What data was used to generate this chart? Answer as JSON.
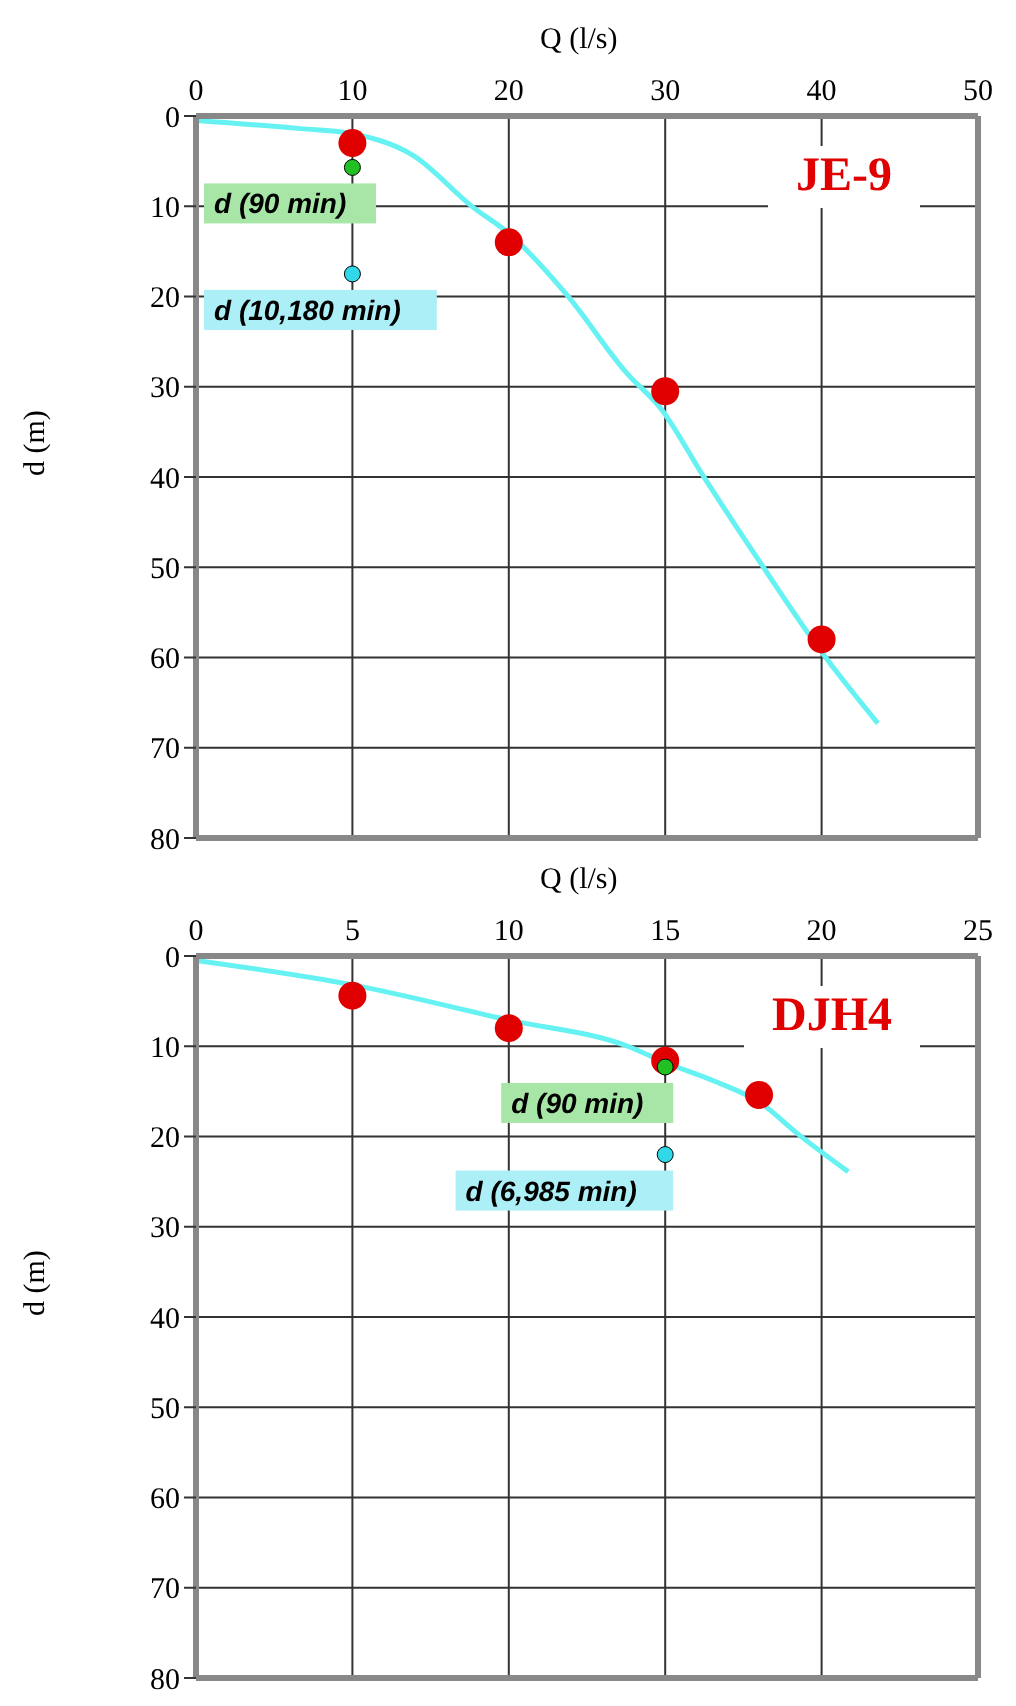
{
  "chart_data": [
    {
      "type": "scatter",
      "title": "JE-9",
      "xlabel": "Q (l/s)",
      "ylabel": "d (m)",
      "xlim": [
        0,
        50
      ],
      "xticks": [
        0,
        10,
        20,
        30,
        40,
        50
      ],
      "ylim": [
        80,
        0
      ],
      "yticks": [
        0,
        10,
        20,
        30,
        40,
        50,
        60,
        70,
        80
      ],
      "grid": true,
      "legend": false,
      "series": [
        {
          "color": "#e00000",
          "marker": "circle",
          "x": [
            10,
            20,
            30,
            40
          ],
          "values": [
            3,
            14,
            30.5,
            58
          ]
        },
        {
          "name": "d (90 min)",
          "color": "#22c022",
          "marker": "circle",
          "x": [
            10
          ],
          "values": [
            5.7
          ]
        },
        {
          "name": "d (10,180 min)",
          "color": "#30d8e8",
          "marker": "circle",
          "x": [
            10
          ],
          "values": [
            17.5
          ]
        },
        {
          "type": "line",
          "color": "#66f2f2",
          "x": [
            0,
            6.7,
            9.8,
            13.9,
            17.7,
            20,
            23.7,
            27.5,
            29.8,
            32.4,
            36.2,
            40,
            43.6
          ],
          "values": [
            0.5,
            1.4,
            1.9,
            4.4,
            10.1,
            13,
            19.8,
            28.4,
            32.6,
            39.8,
            49.8,
            59.4,
            67.3
          ]
        }
      ]
    },
    {
      "type": "scatter",
      "title": "DJH4",
      "xlabel": "Q (l/s)",
      "ylabel": "d (m)",
      "xlim": [
        0,
        25
      ],
      "xticks": [
        0,
        5,
        10,
        15,
        20,
        25
      ],
      "ylim": [
        80,
        0
      ],
      "yticks": [
        0,
        10,
        20,
        30,
        40,
        50,
        60,
        70,
        80
      ],
      "grid": true,
      "legend": false,
      "series": [
        {
          "color": "#e00000",
          "marker": "circle",
          "x": [
            5,
            10,
            15,
            18
          ],
          "values": [
            4.4,
            8,
            11.6,
            15.4
          ]
        },
        {
          "name": "d (90 min)",
          "color": "#22c022",
          "marker": "circle",
          "x": [
            15
          ],
          "values": [
            12.3
          ]
        },
        {
          "name": "d (6,985 min)",
          "color": "#30d8e8",
          "marker": "circle",
          "x": [
            15
          ],
          "values": [
            22
          ]
        },
        {
          "type": "line",
          "color": "#66f2f2",
          "x": [
            0,
            5,
            10,
            13.8,
            15,
            16.6,
            18.1,
            19.2,
            20.85
          ],
          "values": [
            0.5,
            3.2,
            7.1,
            10,
            11.8,
            13.9,
            16.4,
            19.6,
            23.9
          ]
        }
      ]
    }
  ]
}
